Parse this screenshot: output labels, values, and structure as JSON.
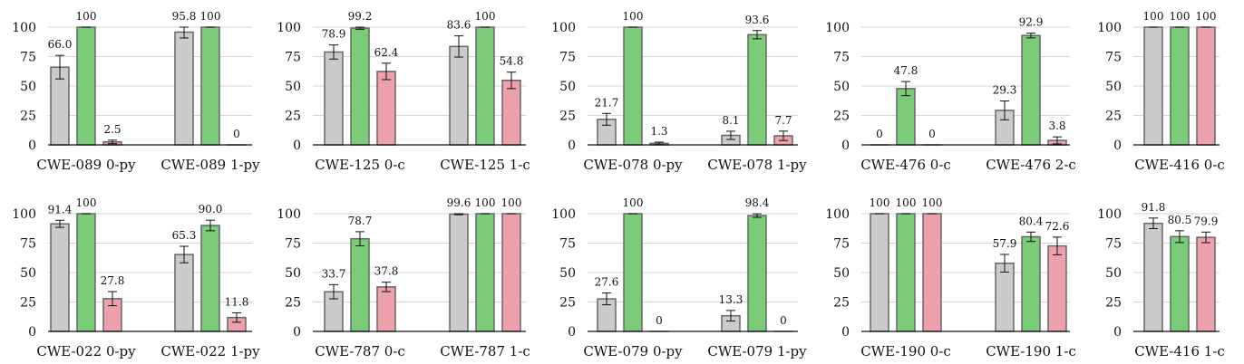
{
  "chart_data": [
    {
      "type": "bar",
      "ylim": [
        0,
        100
      ],
      "yticks": [
        0,
        25,
        50,
        75,
        100
      ],
      "grid": true,
      "colors": [
        "#cbcbcb",
        "#7bcc78",
        "#eda1ab"
      ],
      "groups": [
        {
          "label": "CWE-089 0-py",
          "values": [
            66.0,
            100,
            2.5
          ],
          "labels": [
            "66.0",
            "100",
            "2.5"
          ],
          "errors": [
            10,
            0,
            1.5
          ]
        },
        {
          "label": "CWE-089 1-py",
          "values": [
            95.8,
            100,
            0
          ],
          "labels": [
            "95.8",
            "100",
            "0"
          ],
          "errors": [
            5,
            0,
            0
          ]
        }
      ]
    },
    {
      "type": "bar",
      "ylim": [
        0,
        100
      ],
      "yticks": [
        0,
        25,
        50,
        75,
        100
      ],
      "grid": true,
      "colors": [
        "#cbcbcb",
        "#7bcc78",
        "#eda1ab"
      ],
      "groups": [
        {
          "label": "CWE-125 0-c",
          "values": [
            78.9,
            99.2,
            62.4
          ],
          "labels": [
            "78.9",
            "99.2",
            "62.4"
          ],
          "errors": [
            6,
            1,
            7
          ]
        },
        {
          "label": "CWE-125 1-c",
          "values": [
            83.6,
            100,
            54.8
          ],
          "labels": [
            "83.6",
            "100",
            "54.8"
          ],
          "errors": [
            9,
            0,
            7
          ]
        }
      ]
    },
    {
      "type": "bar",
      "ylim": [
        0,
        100
      ],
      "yticks": [
        0,
        25,
        50,
        75,
        100
      ],
      "grid": true,
      "colors": [
        "#cbcbcb",
        "#7bcc78",
        "#eda1ab"
      ],
      "groups": [
        {
          "label": "CWE-078 0-py",
          "values": [
            21.7,
            100,
            1.3
          ],
          "labels": [
            "21.7",
            "100",
            "1.3"
          ],
          "errors": [
            5,
            0,
            1
          ]
        },
        {
          "label": "CWE-078 1-py",
          "values": [
            8.1,
            93.6,
            7.7
          ],
          "labels": [
            "8.1",
            "93.6",
            "7.7"
          ],
          "errors": [
            3.5,
            3.5,
            4
          ]
        }
      ]
    },
    {
      "type": "bar",
      "ylim": [
        0,
        100
      ],
      "yticks": [
        0,
        25,
        50,
        75,
        100
      ],
      "grid": true,
      "colors": [
        "#cbcbcb",
        "#7bcc78",
        "#eda1ab"
      ],
      "groups": [
        {
          "label": "CWE-476 0-c",
          "values": [
            0,
            47.8,
            0
          ],
          "labels": [
            "0",
            "47.8",
            "0"
          ],
          "errors": [
            0,
            6,
            0
          ]
        },
        {
          "label": "CWE-476 2-c",
          "values": [
            29.3,
            92.9,
            3.8
          ],
          "labels": [
            "29.3",
            "92.9",
            "3.8"
          ],
          "errors": [
            8,
            2,
            3
          ]
        }
      ]
    },
    {
      "type": "bar",
      "ylim": [
        0,
        100
      ],
      "yticks": [
        0,
        25,
        50,
        75,
        100
      ],
      "grid": true,
      "colors": [
        "#cbcbcb",
        "#7bcc78",
        "#eda1ab"
      ],
      "groups": [
        {
          "label": "CWE-416 0-c",
          "values": [
            100,
            100,
            100
          ],
          "labels": [
            "100",
            "100",
            "100"
          ],
          "errors": [
            0,
            0,
            0
          ]
        }
      ]
    },
    {
      "type": "bar",
      "ylim": [
        0,
        100
      ],
      "yticks": [
        0,
        25,
        50,
        75,
        100
      ],
      "grid": true,
      "colors": [
        "#cbcbcb",
        "#7bcc78",
        "#eda1ab"
      ],
      "groups": [
        {
          "label": "CWE-022 0-py",
          "values": [
            91.4,
            100,
            27.8
          ],
          "labels": [
            "91.4",
            "100",
            "27.8"
          ],
          "errors": [
            3,
            0,
            6
          ]
        },
        {
          "label": "CWE-022 1-py",
          "values": [
            65.3,
            90.0,
            11.8
          ],
          "labels": [
            "65.3",
            "90.0",
            "11.8"
          ],
          "errors": [
            7,
            4.5,
            4
          ]
        }
      ]
    },
    {
      "type": "bar",
      "ylim": [
        0,
        100
      ],
      "yticks": [
        0,
        25,
        50,
        75,
        100
      ],
      "grid": true,
      "colors": [
        "#cbcbcb",
        "#7bcc78",
        "#eda1ab"
      ],
      "groups": [
        {
          "label": "CWE-787 0-c",
          "values": [
            33.7,
            78.7,
            37.8
          ],
          "labels": [
            "33.7",
            "78.7",
            "37.8"
          ],
          "errors": [
            6,
            6,
            4
          ]
        },
        {
          "label": "CWE-787 1-c",
          "values": [
            99.6,
            100,
            100
          ],
          "labels": [
            "99.6",
            "100",
            "100"
          ],
          "errors": [
            0.5,
            0,
            0
          ]
        }
      ]
    },
    {
      "type": "bar",
      "ylim": [
        0,
        100
      ],
      "yticks": [
        0,
        25,
        50,
        75,
        100
      ],
      "grid": true,
      "colors": [
        "#cbcbcb",
        "#7bcc78",
        "#eda1ab"
      ],
      "groups": [
        {
          "label": "CWE-079 0-py",
          "values": [
            27.6,
            100,
            0
          ],
          "labels": [
            "27.6",
            "100",
            "0"
          ],
          "errors": [
            5,
            0,
            0
          ]
        },
        {
          "label": "CWE-079 1-py",
          "values": [
            13.3,
            98.4,
            0
          ],
          "labels": [
            "13.3",
            "98.4",
            "0"
          ],
          "errors": [
            4.5,
            1.5,
            0
          ]
        }
      ]
    },
    {
      "type": "bar",
      "ylim": [
        0,
        100
      ],
      "yticks": [
        0,
        25,
        50,
        75,
        100
      ],
      "grid": true,
      "colors": [
        "#cbcbcb",
        "#7bcc78",
        "#eda1ab"
      ],
      "groups": [
        {
          "label": "CWE-190 0-c",
          "values": [
            100,
            100,
            100
          ],
          "labels": [
            "100",
            "100",
            "100"
          ],
          "errors": [
            0,
            0,
            0
          ]
        },
        {
          "label": "CWE-190 1-c",
          "values": [
            57.9,
            80.4,
            72.6
          ],
          "labels": [
            "57.9",
            "80.4",
            "72.6"
          ],
          "errors": [
            7.5,
            4,
            7.5
          ]
        }
      ]
    },
    {
      "type": "bar",
      "ylim": [
        0,
        100
      ],
      "yticks": [
        0,
        25,
        50,
        75,
        100
      ],
      "grid": true,
      "colors": [
        "#cbcbcb",
        "#7bcc78",
        "#eda1ab"
      ],
      "groups": [
        {
          "label": "CWE-416 1-c",
          "values": [
            91.8,
            80.5,
            79.9
          ],
          "labels": [
            "91.8",
            "80.5",
            "79.9"
          ],
          "errors": [
            4.5,
            5,
            4.5
          ]
        }
      ]
    }
  ]
}
